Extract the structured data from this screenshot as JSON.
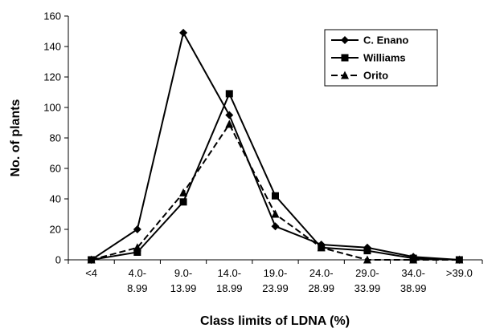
{
  "chart_data": {
    "type": "line",
    "title": "",
    "xlabel": "Class limits of LDNA (%)",
    "ylabel": "No. of plants",
    "ylim": [
      0,
      160
    ],
    "yticks": [
      "0",
      "20",
      "40",
      "60",
      "80",
      "100",
      "120",
      "140",
      "160"
    ],
    "categories": [
      [
        "<4"
      ],
      [
        "4.0-",
        "8.99"
      ],
      [
        "9.0-",
        "13.99"
      ],
      [
        "14.0-",
        "18.99"
      ],
      [
        "19.0-",
        "23.99"
      ],
      [
        "24.0-",
        "28.99"
      ],
      [
        "29.0-",
        "33.99"
      ],
      [
        "34.0-",
        "38.99"
      ],
      [
        ">39.0"
      ]
    ],
    "grid": false,
    "legend_position": "top-right",
    "series": [
      {
        "name": "C. Enano",
        "marker": "diamond",
        "line": "solid",
        "color": "#000000",
        "values": [
          0,
          20,
          149,
          95,
          22,
          10,
          8,
          2,
          0
        ]
      },
      {
        "name": "Williams",
        "marker": "square",
        "line": "solid",
        "color": "#000000",
        "values": [
          0,
          5,
          38,
          109,
          42,
          8,
          6,
          1,
          0
        ]
      },
      {
        "name": "Orito",
        "marker": "triangle",
        "line": "dashed",
        "color": "#000000",
        "values": [
          0,
          8,
          44,
          89,
          30,
          8,
          0,
          0,
          0
        ]
      }
    ]
  }
}
